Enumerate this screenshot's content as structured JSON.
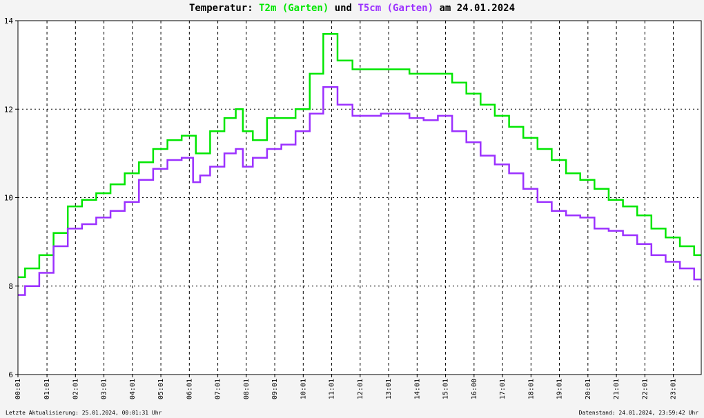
{
  "chart_data": {
    "type": "line",
    "title_parts": {
      "prefix": "Temperatur:",
      "series1": "T2m (Garten)",
      "joiner": "und",
      "series2": "T5cm (Garten)",
      "suffix": "am 24.01.2024"
    },
    "xlabel": "",
    "ylabel": "",
    "ylim": [
      6,
      14
    ],
    "yticks": [
      6,
      8,
      10,
      12,
      14
    ],
    "xlim": [
      0,
      24
    ],
    "x_tick_labels": [
      "00:01",
      "01:01",
      "02:01",
      "03:01",
      "04:01",
      "05:01",
      "06:01",
      "07:01",
      "08:01",
      "09:01",
      "10:01",
      "11:01",
      "12:01",
      "13:01",
      "14:01",
      "15:01",
      "16:00",
      "17:01",
      "18:01",
      "19:01",
      "20:01",
      "21:01",
      "22:01",
      "23:01"
    ],
    "grid": true,
    "series": [
      {
        "name": "T2m (Garten)",
        "color": "#00e600",
        "x": [
          0,
          0.5,
          1.0,
          1.5,
          2.0,
          2.5,
          3.0,
          3.5,
          4.0,
          4.5,
          5.0,
          5.5,
          6.0,
          6.5,
          7.0,
          7.5,
          7.8,
          8.0,
          8.5,
          9.0,
          9.5,
          10.0,
          10.5,
          10.95,
          11.5,
          12.0,
          12.5,
          13.0,
          13.5,
          14.0,
          14.5,
          15.0,
          15.5,
          16.0,
          16.5,
          17.0,
          17.5,
          18.0,
          18.5,
          19.0,
          19.5,
          20.0,
          20.5,
          21.0,
          21.5,
          22.0,
          22.5,
          23.0,
          23.5,
          24.0
        ],
        "values": [
          8.2,
          8.4,
          8.7,
          9.2,
          9.8,
          9.95,
          10.1,
          10.3,
          10.55,
          10.8,
          11.1,
          11.3,
          11.4,
          11.0,
          11.5,
          11.8,
          12.0,
          11.5,
          11.3,
          11.8,
          11.8,
          12.0,
          12.8,
          13.7,
          13.1,
          12.9,
          12.9,
          12.9,
          12.9,
          12.8,
          12.8,
          12.8,
          12.6,
          12.35,
          12.1,
          11.85,
          11.6,
          11.35,
          11.1,
          10.85,
          10.55,
          10.4,
          10.2,
          9.95,
          9.8,
          9.6,
          9.3,
          9.1,
          8.9,
          8.7
        ]
      },
      {
        "name": "T5cm (Garten)",
        "color": "#9b30ff",
        "x": [
          0,
          0.5,
          1.0,
          1.5,
          2.0,
          2.5,
          3.0,
          3.5,
          4.0,
          4.5,
          5.0,
          5.5,
          6.0,
          6.3,
          6.5,
          7.0,
          7.5,
          7.8,
          8.0,
          8.5,
          9.0,
          9.5,
          10.0,
          10.5,
          10.95,
          11.5,
          12.0,
          12.5,
          13.0,
          13.5,
          14.0,
          14.5,
          15.0,
          15.5,
          16.0,
          16.5,
          17.0,
          17.5,
          18.0,
          18.5,
          19.0,
          19.5,
          20.0,
          20.5,
          21.0,
          21.5,
          22.0,
          22.5,
          23.0,
          23.5,
          24.0
        ],
        "values": [
          7.8,
          8.0,
          8.3,
          8.9,
          9.3,
          9.4,
          9.55,
          9.7,
          9.9,
          10.4,
          10.65,
          10.85,
          10.9,
          10.35,
          10.5,
          10.7,
          11.0,
          11.1,
          10.7,
          10.9,
          11.1,
          11.2,
          11.5,
          11.9,
          12.5,
          12.1,
          11.85,
          11.85,
          11.9,
          11.9,
          11.8,
          11.75,
          11.85,
          11.5,
          11.25,
          10.95,
          10.75,
          10.55,
          10.2,
          9.9,
          9.7,
          9.6,
          9.55,
          9.3,
          9.25,
          9.15,
          8.95,
          8.7,
          8.55,
          8.4,
          8.15
        ]
      }
    ]
  },
  "footer": {
    "left": "Letzte Aktualisierung: 25.01.2024, 00:01:31 Uhr",
    "right": "Datenstand: 24.01.2024, 23:59:42 Uhr"
  }
}
